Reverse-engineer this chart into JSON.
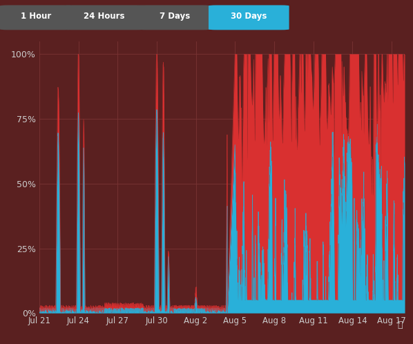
{
  "background_color": "#5a2020",
  "plot_bg_color": "#5a2020",
  "grid_color": "#7a3535",
  "blue_color": "#29b0d9",
  "red_color": "#d93030",
  "button_bg": "#555555",
  "button_active_bg": "#29b0d9",
  "button_text": "#ffffff",
  "tick_color": "#cccccc",
  "yticks": [
    0,
    25,
    50,
    75,
    100
  ],
  "ytick_labels": [
    "0%",
    "25%",
    "50%",
    "75%",
    "100%"
  ],
  "xtick_labels": [
    "Jul 21",
    "Jul 24",
    "Jul 27",
    "Jul 30",
    "Aug 2",
    "Aug 5",
    "Aug 8",
    "Aug 11",
    "Aug 14",
    "Aug 17"
  ],
  "buttons": [
    "1 Hour",
    "24 Hours",
    "7 Days",
    "30 Days"
  ],
  "active_button": "30 Days"
}
